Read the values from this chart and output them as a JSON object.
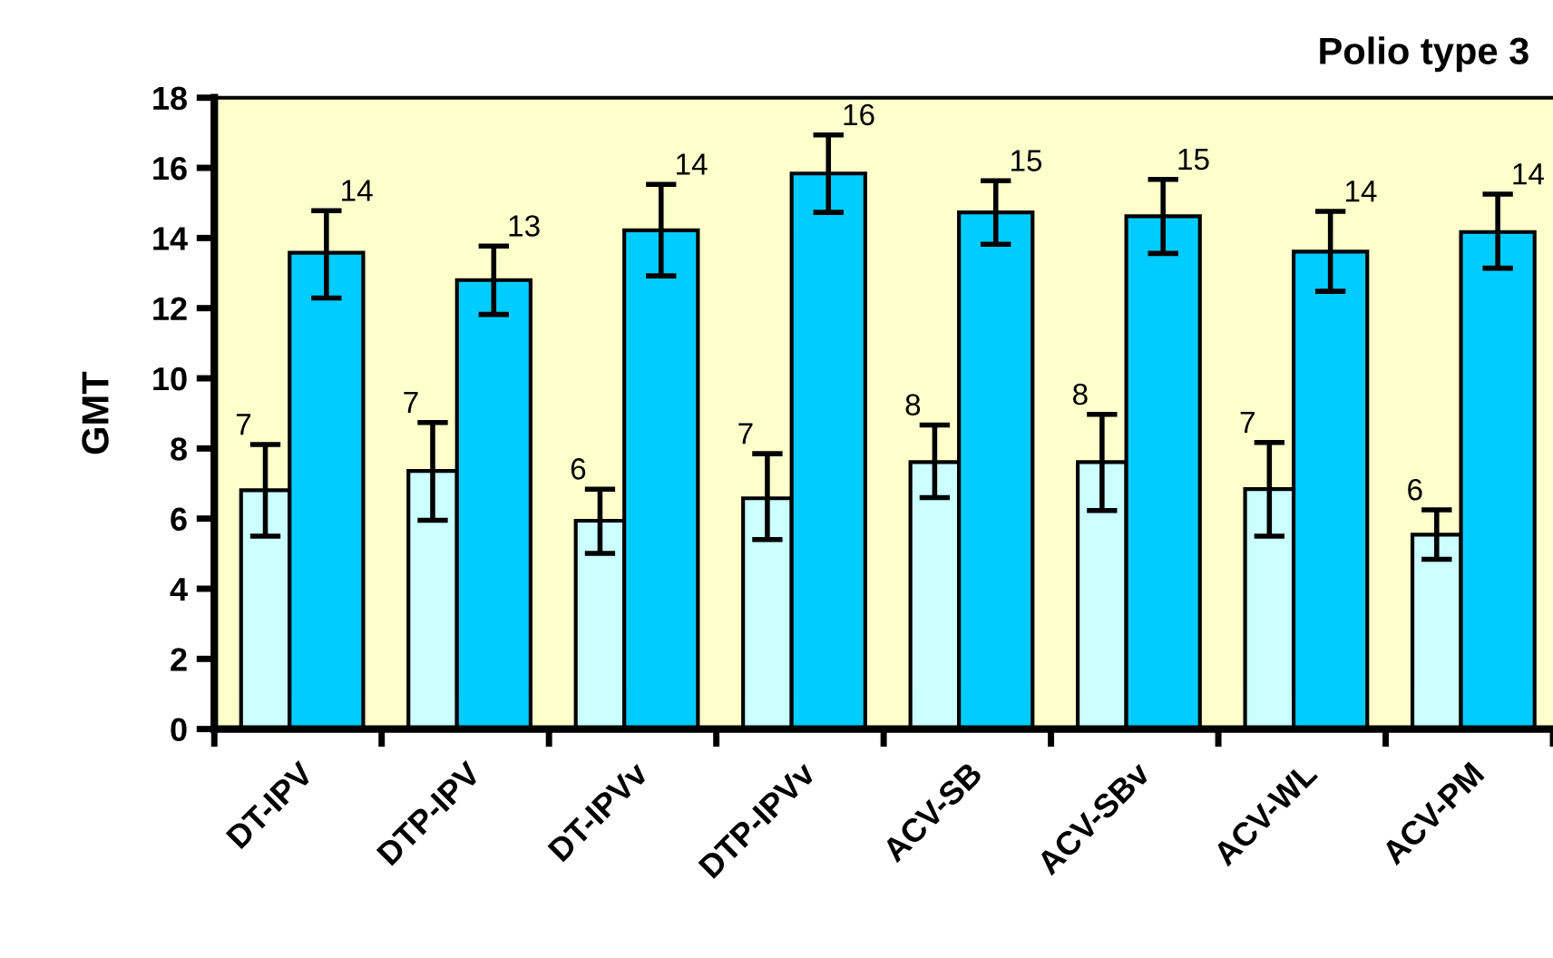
{
  "chart_data": {
    "type": "bar",
    "title": "Polio type 3",
    "ylabel": "GMT",
    "categories": [
      "DT-IPV",
      "DTP-IPV",
      "DT-IPVv",
      "DTP-IPVv",
      "ACV-SB",
      "ACV-SBv",
      "ACV-WL",
      "ACV-PM"
    ],
    "series": [
      {
        "color": "#ccffff",
        "values": [
          6.81,
          7.36,
          5.94,
          6.58,
          7.61,
          7.61,
          6.84,
          5.54
        ],
        "errors": [
          [
            5.5,
            8.11
          ],
          [
            5.95,
            8.74
          ],
          [
            5.01,
            6.84
          ],
          [
            5.4,
            7.85
          ],
          [
            6.6,
            8.67
          ],
          [
            6.23,
            8.97
          ],
          [
            5.5,
            8.17
          ],
          [
            4.84,
            6.25
          ]
        ],
        "value_labels": [
          "7",
          "7",
          "6",
          "7",
          "8",
          "8",
          "7",
          "6"
        ]
      },
      {
        "color": "#00ccff",
        "values": [
          13.58,
          12.8,
          14.22,
          15.84,
          14.73,
          14.62,
          13.61,
          14.17
        ],
        "errors": [
          [
            12.29,
            14.78
          ],
          [
            11.82,
            13.77
          ],
          [
            12.92,
            15.53
          ],
          [
            14.73,
            16.94
          ],
          [
            13.82,
            15.63
          ],
          [
            13.56,
            15.67
          ],
          [
            12.48,
            14.76
          ],
          [
            13.14,
            15.25
          ]
        ],
        "value_labels": [
          "14",
          "13",
          "14",
          "16",
          "15",
          "15",
          "14",
          "14"
        ]
      }
    ],
    "ylim": [
      0,
      18
    ],
    "yticks": [
      0,
      2,
      4,
      6,
      8,
      10,
      12,
      14,
      16,
      18
    ],
    "grid": false,
    "legend": false
  }
}
